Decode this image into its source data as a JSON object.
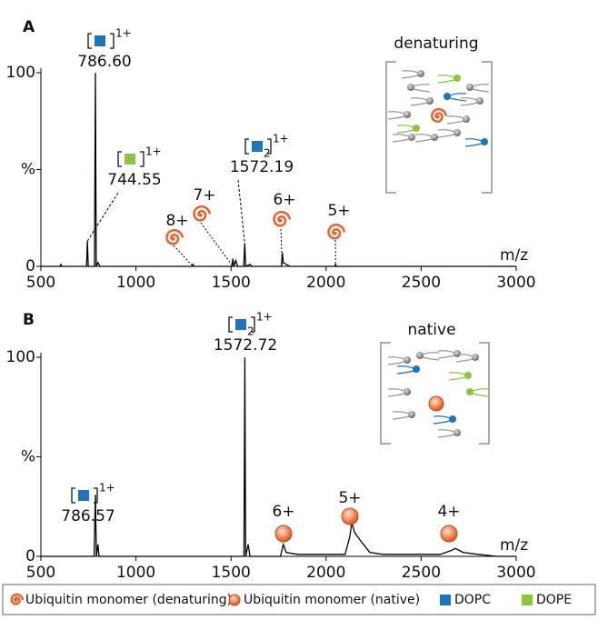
{
  "chart_data": [
    {
      "type": "line",
      "panel": "A",
      "inset_title": "denaturing",
      "x_label": "m/z",
      "xlim": [
        500,
        3000
      ],
      "xticks": [
        500,
        1000,
        1500,
        2000,
        2500,
        3000
      ],
      "ylim": [
        0,
        100
      ],
      "yticks": [
        0,
        {
          "value": 50,
          "label": "%"
        },
        100
      ],
      "series": [
        {
          "color": "#000000",
          "x": [
            500,
            600,
            605,
            610,
            740,
            744.55,
            749,
            782,
            786.6,
            791,
            800,
            810,
            1295,
            1300,
            1305,
            1505,
            1510,
            1515,
            1525,
            1535,
            1567,
            1572.19,
            1577,
            1600,
            1610,
            1765,
            1770,
            1775,
            1790,
            1810,
            2045,
            2050,
            2055,
            3000
          ],
          "values": [
            0,
            0,
            1,
            0,
            0,
            13,
            0,
            0,
            100,
            0,
            2,
            0,
            0,
            1,
            0,
            0,
            4,
            0,
            3,
            0,
            0,
            12,
            0,
            1,
            0,
            0,
            7,
            2,
            1,
            0,
            0,
            1,
            0,
            0
          ]
        }
      ],
      "peak_labels": [
        {
          "x": 786.6,
          "label": "786.60",
          "species": {
            "lipid": "DOPC",
            "charge": "1+"
          }
        },
        {
          "x": 744.55,
          "label": "744.55",
          "species": {
            "lipid": "DOPE",
            "charge": "1+"
          }
        },
        {
          "x": 1572.19,
          "label": "1572.19",
          "species": {
            "lipid": "DOPC",
            "count": 2,
            "charge": "1+"
          }
        }
      ],
      "charge_states": [
        {
          "x": 1300,
          "label": "8+",
          "marker": "spiral"
        },
        {
          "x": 1510,
          "label": "7+",
          "marker": "spiral"
        },
        {
          "x": 1770,
          "label": "6+",
          "marker": "spiral"
        },
        {
          "x": 2050,
          "label": "5+",
          "marker": "spiral"
        }
      ]
    },
    {
      "type": "line",
      "panel": "B",
      "inset_title": "native",
      "x_label": "m/z",
      "xlim": [
        500,
        3000
      ],
      "xticks": [
        500,
        1000,
        1500,
        2000,
        2500,
        3000
      ],
      "ylim": [
        0,
        100
      ],
      "yticks": [
        0,
        {
          "value": 50,
          "label": "%"
        },
        100
      ],
      "series": [
        {
          "color": "#000000",
          "x": [
            500,
            780,
            786.57,
            792,
            800,
            806,
            1568,
            1572.72,
            1577,
            1590,
            1600,
            1760,
            1775,
            1790,
            1850,
            2100,
            2125,
            2135,
            2150,
            2180,
            2230,
            2300,
            2600,
            2660,
            2680,
            2720,
            2800,
            2900,
            3000
          ],
          "values": [
            0,
            0,
            31,
            0,
            6,
            0,
            0,
            100,
            0,
            6,
            0,
            0,
            6,
            2,
            1,
            1,
            10,
            17,
            12,
            8,
            2,
            1,
            1,
            3,
            4,
            2,
            1,
            0,
            0
          ]
        }
      ],
      "peak_labels": [
        {
          "x": 786.57,
          "label": "786.57",
          "species": {
            "lipid": "DOPC",
            "charge": "1+"
          }
        },
        {
          "x": 1572.72,
          "label": "1572.72",
          "species": {
            "lipid": "DOPC",
            "count": 2,
            "charge": "1+"
          }
        }
      ],
      "charge_states": [
        {
          "x": 1780,
          "label": "6+",
          "marker": "circle"
        },
        {
          "x": 2140,
          "label": "5+",
          "marker": "circle"
        },
        {
          "x": 2680,
          "label": "4+",
          "marker": "circle"
        }
      ]
    }
  ],
  "legend": [
    {
      "label": "Ubiquitin monomer (denaturing)",
      "marker": "spiral",
      "color": "#e8622a"
    },
    {
      "label": "Ubiquitin monomer (native)",
      "marker": "circle",
      "color": "#f08a5d"
    },
    {
      "label": "DOPC",
      "marker": "square",
      "color": "#1f74c0"
    },
    {
      "label": "DOPE",
      "marker": "square",
      "color": "#8cc63f"
    }
  ]
}
